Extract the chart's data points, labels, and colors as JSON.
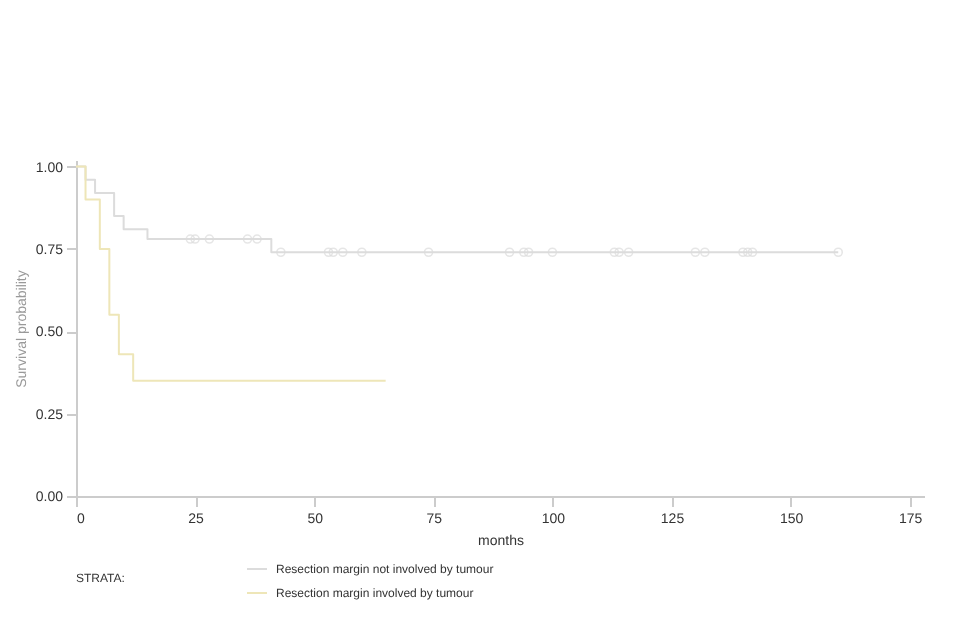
{
  "chart_data": {
    "type": "step",
    "xlabel": "months",
    "ylabel": "Survival probability",
    "legend_title": "STRATA:",
    "legend": "bottom",
    "grid": false,
    "xlim": [
      0,
      178
    ],
    "xticks": [
      0,
      25,
      50,
      75,
      100,
      125,
      150,
      175
    ],
    "ylim": [
      0,
      1.02
    ],
    "yticks": [
      {
        "value": 0,
        "label": "0.00"
      },
      {
        "value": 0.25,
        "label": "0.25"
      },
      {
        "value": 0.5,
        "label": "0.50"
      },
      {
        "value": 0.75,
        "label": "0.75"
      },
      {
        "value": 1,
        "label": "1.00"
      }
    ],
    "series": [
      {
        "name": "Resection margin not involved by tumour",
        "color": "#dcdcdc",
        "x": [
          0,
          2,
          4,
          8,
          10,
          15,
          41,
          160
        ],
        "values": [
          1,
          0.96,
          0.92,
          0.85,
          0.81,
          0.78,
          0.74,
          0.74
        ]
      },
      {
        "name": "Resection margin involved by tumour",
        "color": "#eee6b8",
        "x": [
          0,
          2,
          5,
          7,
          9,
          12,
          65
        ],
        "values": [
          1,
          0.9,
          0.75,
          0.55,
          0.43,
          0.35,
          0.35
        ]
      },
      {
        "type": "scatter",
        "marker": "circle",
        "color": "#dcdcdc",
        "x": [
          24,
          25,
          28,
          36,
          38,
          43,
          53,
          54,
          56,
          60,
          74,
          91,
          94,
          95,
          100,
          113,
          114,
          116,
          130,
          132,
          140,
          141,
          142,
          160
        ],
        "values": [
          0.78,
          0.78,
          0.78,
          0.78,
          0.78,
          0.74,
          0.74,
          0.74,
          0.74,
          0.74,
          0.74,
          0.74,
          0.74,
          0.74,
          0.74,
          0.74,
          0.74,
          0.74,
          0.74,
          0.74,
          0.74,
          0.74,
          0.74,
          0.74
        ]
      }
    ]
  }
}
